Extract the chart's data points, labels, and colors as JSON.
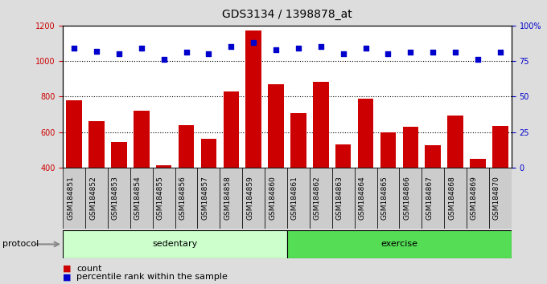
{
  "title": "GDS3134 / 1398878_at",
  "categories": [
    "GSM184851",
    "GSM184852",
    "GSM184853",
    "GSM184854",
    "GSM184855",
    "GSM184856",
    "GSM184857",
    "GSM184858",
    "GSM184859",
    "GSM184860",
    "GSM184861",
    "GSM184862",
    "GSM184863",
    "GSM184864",
    "GSM184865",
    "GSM184866",
    "GSM184867",
    "GSM184868",
    "GSM184869",
    "GSM184870"
  ],
  "bar_values": [
    780,
    660,
    545,
    720,
    415,
    640,
    560,
    830,
    1170,
    870,
    705,
    885,
    530,
    790,
    600,
    630,
    525,
    695,
    450,
    635
  ],
  "percentile_values": [
    84,
    82,
    80,
    84,
    76,
    81,
    80,
    85,
    88,
    83,
    84,
    85,
    80,
    84,
    80,
    81,
    81,
    81,
    76,
    81
  ],
  "bar_color": "#cc0000",
  "dot_color": "#0000cc",
  "ylim_left": [
    400,
    1200
  ],
  "ylim_right": [
    0,
    100
  ],
  "yticks_left": [
    400,
    600,
    800,
    1000,
    1200
  ],
  "yticks_right": [
    0,
    25,
    50,
    75,
    100
  ],
  "grid_values": [
    600,
    800,
    1000
  ],
  "n_sedentary": 10,
  "n_exercise": 10,
  "sedentary_label": "sedentary",
  "exercise_label": "exercise",
  "sedentary_color": "#ccffcc",
  "exercise_color": "#55dd55",
  "protocol_label": "protocol",
  "legend_count_label": "count",
  "legend_pct_label": "percentile rank within the sample",
  "bg_color": "#dddddd",
  "xtick_bg_color": "#cccccc",
  "plot_bg_color": "#ffffff",
  "title_fontsize": 10,
  "tick_fontsize": 7,
  "legend_fontsize": 8,
  "protocol_fontsize": 8,
  "group_label_fontsize": 8
}
